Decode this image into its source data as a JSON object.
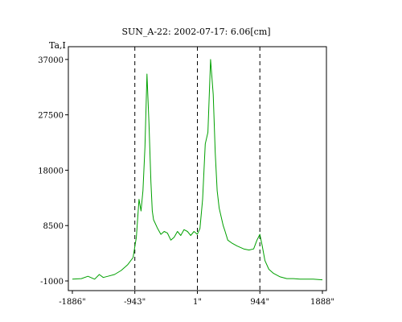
{
  "chart_data": {
    "type": "line",
    "title": "SUN_A-22: 2002-07-17: 6.06[cm]",
    "ylabel": "Ta,I",
    "xlabel": "",
    "xlim": [
      -1886,
      1888
    ],
    "ylim": [
      -1000,
      38500
    ],
    "x_ticks": [
      {
        "value": -1886,
        "label": "-1886\""
      },
      {
        "value": -943,
        "label": "-943\""
      },
      {
        "value": 1,
        "label": "1\""
      },
      {
        "value": 944,
        "label": "944\""
      },
      {
        "value": 1888,
        "label": "1888\""
      }
    ],
    "y_ticks": [
      {
        "value": -1000,
        "label": "-1000"
      },
      {
        "value": 8500,
        "label": "8500"
      },
      {
        "value": 18000,
        "label": "18000"
      },
      {
        "value": 27500,
        "label": "27500"
      },
      {
        "value": 37000,
        "label": "37000"
      }
    ],
    "vertical_dashed_lines": [
      -943,
      1,
      944
    ],
    "grid": false,
    "legend": "none",
    "series": [
      {
        "color": "#00a000",
        "x": [
          -1886,
          -1750,
          -1650,
          -1550,
          -1480,
          -1420,
          -1350,
          -1250,
          -1150,
          -1050,
          -970,
          -920,
          -880,
          -850,
          -820,
          -790,
          -760,
          -730,
          -700,
          -680,
          -660,
          -640,
          -600,
          -550,
          -500,
          -450,
          -400,
          -350,
          -300,
          -250,
          -200,
          -150,
          -100,
          -50,
          0,
          40,
          80,
          120,
          160,
          200,
          240,
          270,
          300,
          330,
          360,
          390,
          420,
          460,
          520,
          600,
          700,
          780,
          850,
          900,
          944,
          980,
          1020,
          1080,
          1150,
          1250,
          1350,
          1450,
          1550,
          1650,
          1750,
          1888
        ],
        "y": [
          -700,
          -600,
          -200,
          -700,
          100,
          -400,
          -200,
          100,
          800,
          1800,
          3000,
          6500,
          13000,
          11000,
          14500,
          22000,
          34500,
          26000,
          16000,
          11000,
          9500,
          9000,
          8000,
          7000,
          7500,
          7200,
          6000,
          6500,
          7500,
          6800,
          7800,
          7500,
          6800,
          7500,
          7000,
          8000,
          13000,
          22500,
          24500,
          37000,
          31000,
          21000,
          14500,
          11500,
          10000,
          8500,
          7500,
          6000,
          5500,
          5000,
          4500,
          4300,
          4500,
          6000,
          7000,
          5000,
          2500,
          1000,
          300,
          -300,
          -600,
          -600,
          -700,
          -700,
          -700,
          -800
        ]
      }
    ]
  }
}
